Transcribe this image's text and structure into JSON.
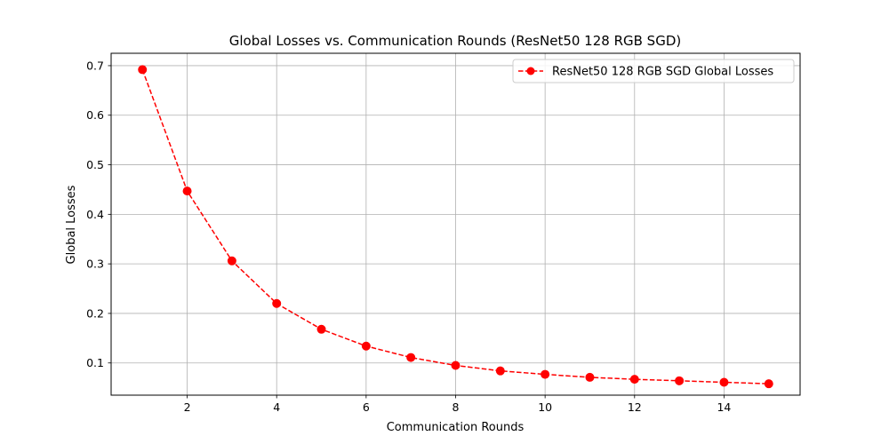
{
  "chart_data": {
    "type": "line",
    "title": "Global Losses vs. Communication Rounds (ResNet50 128 RGB SGD)",
    "xlabel": "Communication Rounds",
    "ylabel": "Global Losses",
    "xlim": [
      0.3,
      15.7
    ],
    "ylim": [
      0.035,
      0.725
    ],
    "xticks": [
      2,
      4,
      6,
      8,
      10,
      12,
      14
    ],
    "yticks": [
      0.1,
      0.2,
      0.3,
      0.4,
      0.5,
      0.6,
      0.7
    ],
    "grid": true,
    "legend_position": "top-right",
    "series": [
      {
        "name": "ResNet50 128 RGB SGD Global Losses",
        "color": "#ff0000",
        "line_style": "dashed",
        "marker": "circle",
        "x": [
          1,
          2,
          3,
          4,
          5,
          6,
          7,
          8,
          9,
          10,
          11,
          12,
          13,
          14,
          15
        ],
        "y": [
          0.692,
          0.447,
          0.306,
          0.22,
          0.168,
          0.134,
          0.111,
          0.095,
          0.084,
          0.077,
          0.071,
          0.067,
          0.064,
          0.061,
          0.058
        ]
      }
    ]
  }
}
